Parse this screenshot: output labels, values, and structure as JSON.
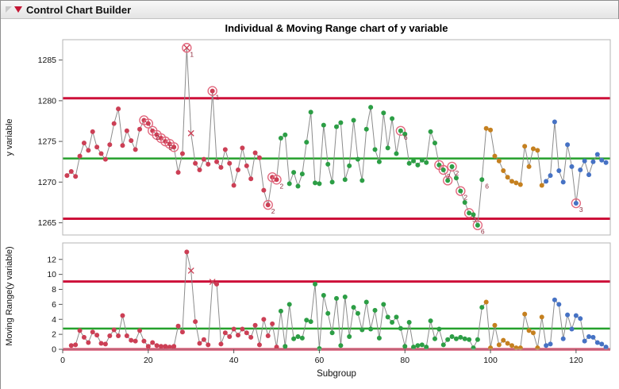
{
  "header": {
    "title": "Control Chart Builder"
  },
  "chart_data": {
    "type": "line",
    "title": "Individual & Moving Range chart of y variable",
    "xlabel": "Subgroup",
    "x_ticks": [
      0,
      20,
      40,
      60,
      80,
      100,
      120
    ],
    "x_range": [
      0,
      128
    ],
    "grid": false,
    "legend": "none",
    "panels": [
      {
        "name": "individuals",
        "ylabel": "y variable",
        "y_ticks": [
          1265,
          1270,
          1275,
          1280,
          1285
        ],
        "y_range": [
          1263.5,
          1287.5
        ],
        "ucl": 1280.3,
        "center": 1272.9,
        "lcl": 1265.5
      },
      {
        "name": "moving-range",
        "ylabel": "Moving Range(y variable)",
        "y_ticks": [
          0,
          2,
          4,
          6,
          8,
          10,
          12
        ],
        "y_range": [
          0,
          14.2
        ],
        "ucl": 9.05,
        "center": 2.77,
        "lcl": 0
      }
    ],
    "segments": [
      {
        "from": 1,
        "to": 50,
        "color": "#cc3f55"
      },
      {
        "from": 51,
        "to": 98,
        "color": "#2c9e45"
      },
      {
        "from": 99,
        "to": 112,
        "color": "#c5801f"
      },
      {
        "from": 113,
        "to": 127,
        "color": "#4672c4"
      }
    ],
    "values": [
      1270.8,
      1271.3,
      1270.7,
      1273.2,
      1274.8,
      1273.9,
      1276.2,
      1274.3,
      1273.5,
      1272.8,
      1274.6,
      1277.2,
      1279.0,
      1274.5,
      1276.3,
      1275.1,
      1274.0,
      1276.5,
      1277.6,
      1277.2,
      1276.3,
      1275.8,
      1275.4,
      1275.0,
      1274.7,
      1274.3,
      1271.2,
      1273.5,
      1286.5,
      1276.0,
      1272.3,
      1271.5,
      1272.8,
      1272.2,
      1281.2,
      1272.5,
      1271.8,
      1274.0,
      1272.3,
      1269.6,
      1271.5,
      1274.2,
      1272.0,
      1270.4,
      1273.6,
      1273.0,
      1269.0,
      1267.2,
      1270.6,
      1270.3,
      1275.4,
      1275.8,
      1269.8,
      1271.2,
      1269.5,
      1271.0,
      1274.9,
      1278.6,
      1269.9,
      1269.8,
      1277.0,
      1272.2,
      1270.0,
      1276.8,
      1277.3,
      1270.3,
      1272.0,
      1277.6,
      1272.8,
      1270.2,
      1276.5,
      1279.2,
      1274.0,
      1272.5,
      1278.5,
      1274.2,
      1277.8,
      1273.5,
      1276.3,
      1275.9,
      1272.3,
      1272.6,
      1272.1,
      1272.7,
      1272.4,
      1276.2,
      1274.8,
      1272.1,
      1271.5,
      1270.2,
      1271.9,
      1270.5,
      1268.9,
      1267.5,
      1266.2,
      1266.0,
      1264.7,
      1270.3,
      1276.6,
      1276.4,
      1273.2,
      1272.6,
      1271.4,
      1270.6,
      1270.1,
      1269.9,
      1269.7,
      1274.4,
      1271.9,
      1274.1,
      1273.9,
      1269.6,
      1270.1,
      1270.8,
      1277.4,
      1271.4,
      1270.0,
      1274.6,
      1271.9,
      1267.4,
      1271.5,
      1272.6,
      1270.9,
      1272.5,
      1273.4,
      1272.7,
      1272.4
    ],
    "circled": [
      19,
      20,
      21,
      22,
      23,
      24,
      25,
      26,
      29,
      35,
      48,
      49,
      50,
      79,
      88,
      89,
      90,
      91,
      93,
      95,
      97,
      120
    ],
    "x_markers_individuals": [
      29,
      30
    ],
    "x_markers_mr": [
      30,
      35
    ],
    "point_labels": [
      {
        "i": 21,
        "t": "2"
      },
      {
        "i": 24,
        "t": "5"
      },
      {
        "i": 29,
        "t": "1"
      },
      {
        "i": 35,
        "t": "1"
      },
      {
        "i": 48,
        "t": "2"
      },
      {
        "i": 50,
        "t": "2"
      },
      {
        "i": 79,
        "t": "6"
      },
      {
        "i": 89,
        "t": "2"
      },
      {
        "i": 91,
        "t": "2"
      },
      {
        "i": 93,
        "t": "2"
      },
      {
        "i": 95,
        "t": "5"
      },
      {
        "i": 97,
        "t": "6"
      },
      {
        "i": 98,
        "t": "6"
      },
      {
        "i": 120,
        "t": "3"
      }
    ],
    "colors": {
      "limit": "#cd1039",
      "center": "#25a02c",
      "line": "#8c8c8c",
      "ring": "#e2697f",
      "label": "#8d2a3c",
      "axis": "#555555",
      "frame": "#b5b5b5"
    }
  }
}
